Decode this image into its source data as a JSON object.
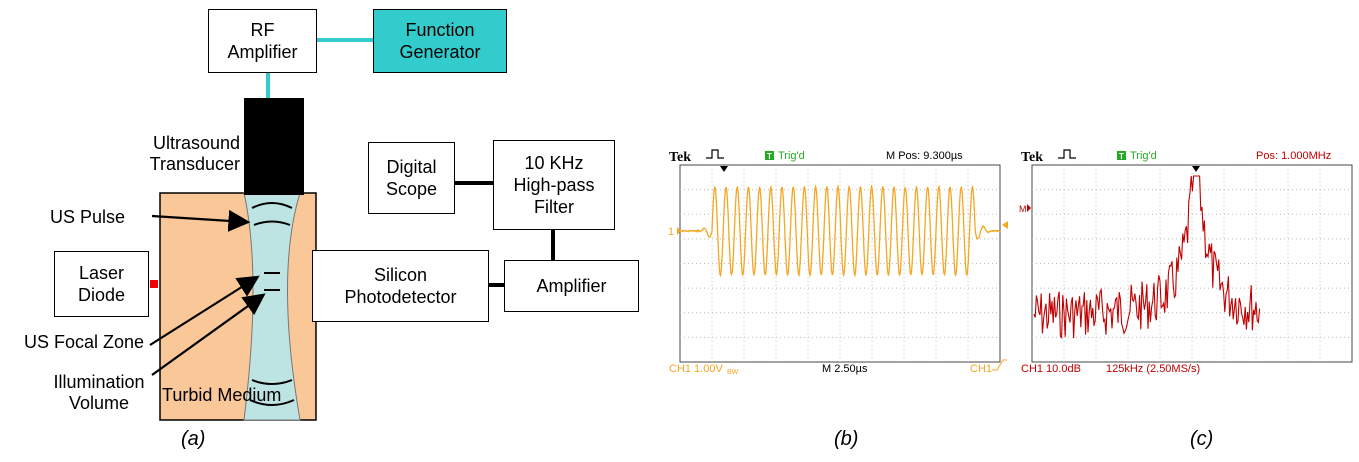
{
  "panel_a": {
    "rf_amplifier": "RF\nAmplifier",
    "function_generator": "Function\nGenerator",
    "transducer_label": "Ultrasound\nTransducer",
    "digital_scope": "Digital\nScope",
    "filter": "10 KHz\nHigh-pass\nFilter",
    "us_pulse": "US Pulse",
    "laser_diode": "Laser\nDiode",
    "photodetector": "Silicon\nPhotodetector",
    "amplifier": "Amplifier",
    "focal_zone": "US Focal Zone",
    "illumination_volume": "Illumination\nVolume",
    "turbid_medium": "Turbid Medium",
    "caption": "(a)"
  },
  "panel_b": {
    "brand": "Tek",
    "trig_status": "Trig'd",
    "position": "M Pos: 9.300µs",
    "ch1_scale": "CH1  1.00V",
    "ch1_suffix": "BW",
    "timebase": "M 2.50µs",
    "trigger_source": "CH1",
    "channel_marker": "1",
    "caption": "(b)"
  },
  "panel_c": {
    "brand": "Tek",
    "trig_status": "Trig'd",
    "position": "Pos: 1.000MHz",
    "ch1_scale": "CH1  10.0dB",
    "span": "125kHz  (2.50MS/s)",
    "math_marker": "M",
    "caption": "(c)"
  },
  "colors": {
    "teal": "#33cccc",
    "peach": "#fac898",
    "lightblue": "#bde3e3",
    "trace_b": "#f5a623",
    "trace_c": "#c00000",
    "trig_green": "#22aa22"
  }
}
